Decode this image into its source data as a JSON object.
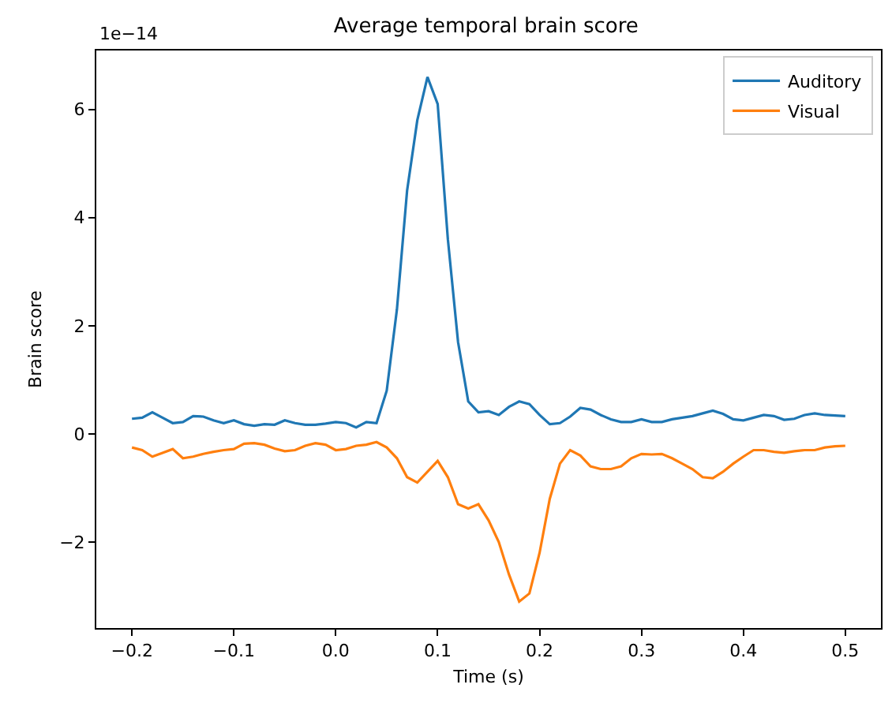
{
  "chart_data": {
    "type": "line",
    "title": "Average temporal brain score",
    "xlabel": "Time (s)",
    "ylabel": "Brain score",
    "annotations": [
      "1e−14"
    ],
    "x": [
      -0.2,
      -0.19,
      -0.18,
      -0.17,
      -0.16,
      -0.15,
      -0.14,
      -0.13,
      -0.12,
      -0.11,
      -0.1,
      -0.09,
      -0.08,
      -0.07,
      -0.06,
      -0.05,
      -0.04,
      -0.03,
      -0.02,
      -0.01,
      0.0,
      0.01,
      0.02,
      0.03,
      0.04,
      0.05,
      0.06,
      0.07,
      0.08,
      0.09,
      0.1,
      0.11,
      0.12,
      0.13,
      0.14,
      0.15,
      0.16,
      0.17,
      0.18,
      0.19,
      0.2,
      0.21,
      0.22,
      0.23,
      0.24,
      0.25,
      0.26,
      0.27,
      0.28,
      0.29,
      0.3,
      0.31,
      0.32,
      0.33,
      0.34,
      0.35,
      0.36,
      0.37,
      0.38,
      0.39,
      0.4,
      0.41,
      0.42,
      0.43,
      0.44,
      0.45,
      0.46,
      0.47,
      0.48,
      0.49,
      0.5
    ],
    "series": [
      {
        "name": "Auditory",
        "color": "#1f77b4",
        "values": [
          0.28,
          0.3,
          0.4,
          0.3,
          0.2,
          0.22,
          0.33,
          0.32,
          0.25,
          0.2,
          0.25,
          0.18,
          0.15,
          0.18,
          0.17,
          0.25,
          0.2,
          0.17,
          0.17,
          0.19,
          0.22,
          0.2,
          0.12,
          0.22,
          0.2,
          0.8,
          2.3,
          4.5,
          5.8,
          6.6,
          6.1,
          3.6,
          1.7,
          0.6,
          0.4,
          0.42,
          0.35,
          0.5,
          0.6,
          0.55,
          0.35,
          0.18,
          0.2,
          0.32,
          0.48,
          0.45,
          0.35,
          0.27,
          0.22,
          0.22,
          0.27,
          0.22,
          0.22,
          0.27,
          0.3,
          0.33,
          0.38,
          0.43,
          0.37,
          0.27,
          0.25,
          0.3,
          0.35,
          0.33,
          0.26,
          0.28,
          0.35,
          0.38,
          0.35,
          0.34,
          0.33
        ]
      },
      {
        "name": "Visual",
        "color": "#ff7f0e",
        "values": [
          -0.25,
          -0.3,
          -0.42,
          -0.35,
          -0.28,
          -0.45,
          -0.42,
          -0.37,
          -0.33,
          -0.3,
          -0.28,
          -0.18,
          -0.17,
          -0.2,
          -0.27,
          -0.32,
          -0.3,
          -0.22,
          -0.17,
          -0.2,
          -0.3,
          -0.28,
          -0.22,
          -0.2,
          -0.15,
          -0.25,
          -0.45,
          -0.8,
          -0.9,
          -0.7,
          -0.5,
          -0.8,
          -1.3,
          -1.38,
          -1.3,
          -1.6,
          -2.0,
          -2.6,
          -3.1,
          -2.95,
          -2.2,
          -1.2,
          -0.55,
          -0.3,
          -0.4,
          -0.6,
          -0.65,
          -0.65,
          -0.6,
          -0.45,
          -0.37,
          -0.38,
          -0.37,
          -0.45,
          -0.55,
          -0.65,
          -0.8,
          -0.82,
          -0.7,
          -0.55,
          -0.42,
          -0.3,
          -0.3,
          -0.33,
          -0.35,
          -0.32,
          -0.3,
          -0.3,
          -0.25,
          -0.23,
          -0.22
        ]
      }
    ],
    "xlim": [
      -0.235,
      0.535
    ],
    "ylim": [
      -3.59,
      7.09
    ],
    "xticks": [
      {
        "value": -0.2,
        "label": "−0.2"
      },
      {
        "value": -0.1,
        "label": "−0.1"
      },
      {
        "value": 0,
        "label": "0.0"
      },
      {
        "value": 0.1,
        "label": "0.1"
      },
      {
        "value": 0.2,
        "label": "0.2"
      },
      {
        "value": 0.3,
        "label": "0.3"
      },
      {
        "value": 0.4,
        "label": "0.4"
      },
      {
        "value": 0.5,
        "label": "0.5"
      }
    ],
    "yticks": [
      {
        "value": -2,
        "label": "−2"
      },
      0,
      2,
      4,
      6
    ],
    "grid": false,
    "legend": "top right",
    "marker": "none",
    "line_style": "solid"
  }
}
